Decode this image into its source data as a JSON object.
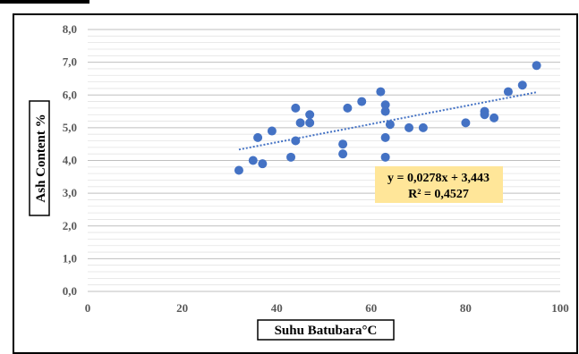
{
  "chart_data": {
    "type": "scatter",
    "title": "",
    "xlabel": "Suhu Batubara°C",
    "ylabel": "Ash Content %",
    "xlim": [
      0,
      100
    ],
    "ylim": [
      0,
      8
    ],
    "x_ticks": [
      "0",
      "20",
      "40",
      "60",
      "80",
      "100"
    ],
    "y_ticks": [
      "0,0",
      "1,0",
      "2,0",
      "3,0",
      "4,0",
      "5,0",
      "6,0",
      "7,0",
      "8,0"
    ],
    "grid": true,
    "colors": {
      "point": "#4472C4",
      "trend": "#4472C4",
      "equation_bg": "#FFE699"
    },
    "series": [
      {
        "points": [
          [
            32,
            3.7
          ],
          [
            35,
            4.0
          ],
          [
            36,
            4.7
          ],
          [
            37,
            3.9
          ],
          [
            39,
            4.9
          ],
          [
            43,
            4.1
          ],
          [
            44,
            5.6
          ],
          [
            44,
            4.6
          ],
          [
            45,
            5.15
          ],
          [
            47,
            5.4
          ],
          [
            47,
            5.15
          ],
          [
            54,
            4.5
          ],
          [
            54,
            4.2
          ],
          [
            55,
            5.6
          ],
          [
            58,
            5.8
          ],
          [
            62,
            6.1
          ],
          [
            63,
            5.7
          ],
          [
            63,
            5.5
          ],
          [
            63,
            4.7
          ],
          [
            63,
            4.1
          ],
          [
            64,
            5.1
          ],
          [
            68,
            5.0
          ],
          [
            71,
            5.0
          ],
          [
            80,
            5.15
          ],
          [
            84,
            5.5
          ],
          [
            84,
            5.4
          ],
          [
            86,
            5.3
          ],
          [
            89,
            6.1
          ],
          [
            92,
            6.3
          ],
          [
            95,
            6.9
          ]
        ]
      }
    ],
    "trendline": {
      "slope": 0.0278,
      "intercept": 3.443,
      "x_range": [
        32,
        95
      ]
    },
    "annotations": {
      "equation": "y = 0,0278x + 3,443",
      "r_squared": "R² = 0,4527"
    }
  }
}
